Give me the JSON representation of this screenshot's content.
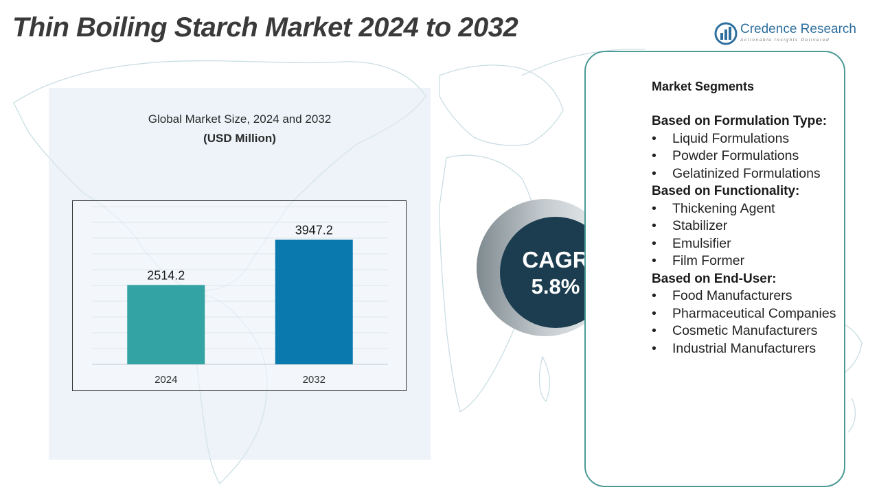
{
  "title": "Thin Boiling Starch Market 2024 to 2032",
  "logo": {
    "name": "Credence Research",
    "tagline": "Actionable Insights Delivered",
    "icon": "credence-logo-icon",
    "color": "#2e6f9e"
  },
  "chart_panel": {
    "subtitle": "Global Market Size, 2024 and 2032",
    "unit_label": "(USD Million)"
  },
  "chart_data": {
    "type": "bar",
    "title": "Global Market Size, 2024 and 2032",
    "ylabel": "(USD Million)",
    "xlabel": "",
    "categories": [
      "2024",
      "2032"
    ],
    "values": [
      2514.2,
      3947.2
    ],
    "value_labels": [
      "2514.2",
      "3947.2"
    ],
    "colors": [
      "#33a3a3",
      "#0a7aae"
    ],
    "ylim": [
      0,
      5000
    ],
    "grid": true,
    "legend": "none"
  },
  "cagr": {
    "label": "CAGR",
    "value": "5.8%"
  },
  "segments": {
    "title": "Market Segments",
    "groups": [
      {
        "heading": "Based on Formulation Type:",
        "items": [
          "Liquid Formulations",
          "Powder Formulations",
          "Gelatinized Formulations"
        ]
      },
      {
        "heading": "Based on Functionality:",
        "items": [
          "Thickening Agent",
          "Stabilizer",
          "Emulsifier",
          "Film Former"
        ]
      },
      {
        "heading": "Based on End-User:",
        "items": [
          "Food Manufacturers",
          "Pharmaceutical Companies",
          "Cosmetic Manufacturers",
          "Industrial Manufacturers"
        ]
      }
    ]
  },
  "colors": {
    "card_border": "#4a9a96",
    "cagr_circle": "#1b3d4f",
    "panel_bg": "#dfeaf3"
  }
}
